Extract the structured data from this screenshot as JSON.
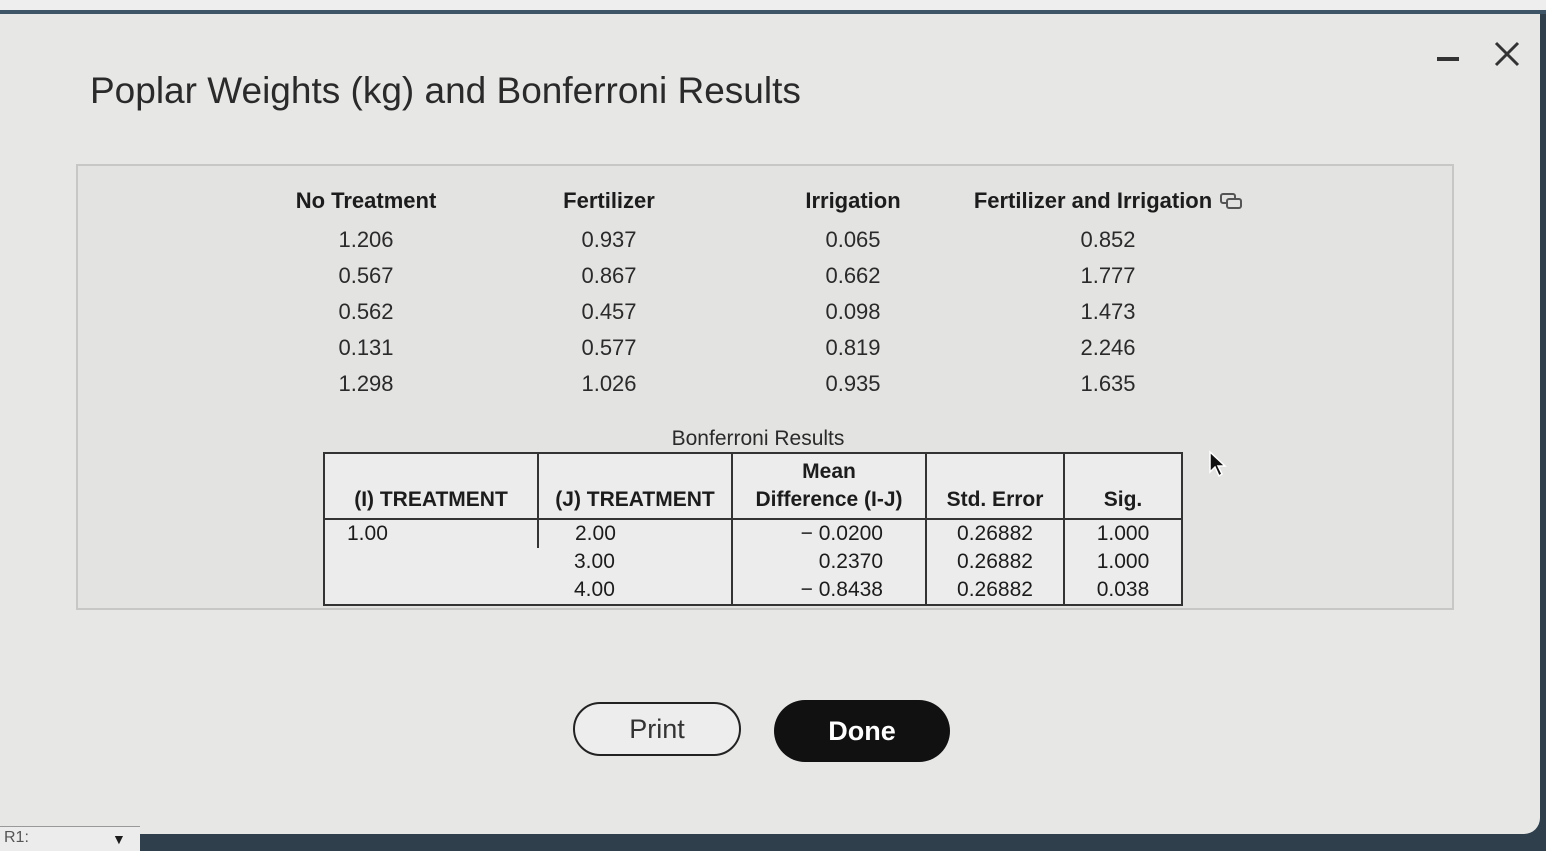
{
  "dialog": {
    "title": "Poplar Weights (kg) and Bonferroni Results",
    "minimize_icon": "minimize-icon",
    "close_icon": "close-icon"
  },
  "data_table": {
    "columns": [
      {
        "header": "No Treatment",
        "values": [
          "1.206",
          "0.567",
          "0.562",
          "0.131",
          "1.298"
        ]
      },
      {
        "header": "Fertilizer",
        "values": [
          "0.937",
          "0.867",
          "0.457",
          "0.577",
          "1.026"
        ]
      },
      {
        "header": "Irrigation",
        "values": [
          "0.065",
          "0.662",
          "0.098",
          "0.819",
          "0.935"
        ]
      },
      {
        "header": "Fertilizer and Irrigation",
        "values": [
          "0.852",
          "1.777",
          "1.473",
          "2.246",
          "1.635"
        ]
      }
    ],
    "copy_icon": "copy-icon"
  },
  "bonferroni": {
    "caption": "Bonferroni Results",
    "headers": {
      "i_treatment": "(I) TREATMENT",
      "j_treatment": "(J) TREATMENT",
      "mean_diff_line1": "Mean",
      "mean_diff_line2": "Difference (I-J)",
      "std_error": "Std. Error",
      "sig": "Sig."
    },
    "i_value": "1.00",
    "rows": [
      {
        "j": "2.00",
        "mean_diff": "− 0.0200",
        "std_error": "0.26882",
        "sig": "1.000"
      },
      {
        "j": "3.00",
        "mean_diff": "0.2370",
        "std_error": "0.26882",
        "sig": "1.000"
      },
      {
        "j": "4.00",
        "mean_diff": "− 0.8438",
        "std_error": "0.26882",
        "sig": "0.038"
      }
    ]
  },
  "buttons": {
    "print": "Print",
    "done": "Done"
  },
  "status": {
    "cell_ref": "R1:"
  },
  "colors": {
    "accent_dark": "#111111",
    "background": "#e7e7e6"
  }
}
